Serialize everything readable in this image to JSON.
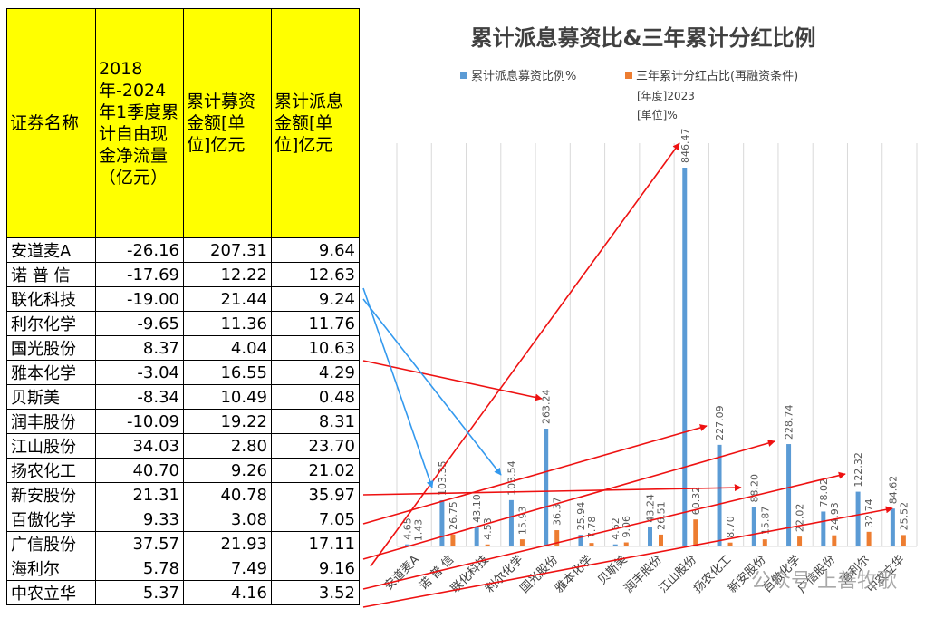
{
  "table": {
    "headers": [
      "证券名称",
      "2018年-2024年1季度累计自由现金净流量（亿元）",
      "累计募资金额[单位]亿元",
      "累计派息金额[单位]亿元"
    ],
    "rows": [
      {
        "name": "安道麦A",
        "fcf": "-26.16",
        "raise": "207.31",
        "div": "9.64"
      },
      {
        "name": "诺 普 信",
        "fcf": "-17.69",
        "raise": "12.22",
        "div": "12.63"
      },
      {
        "name": "联化科技",
        "fcf": "-19.00",
        "raise": "21.44",
        "div": "9.24"
      },
      {
        "name": "利尔化学",
        "fcf": "-9.65",
        "raise": "11.36",
        "div": "11.76"
      },
      {
        "name": "国光股份",
        "fcf": "8.37",
        "raise": "4.04",
        "div": "10.63"
      },
      {
        "name": "雅本化学",
        "fcf": "-3.04",
        "raise": "16.55",
        "div": "4.29"
      },
      {
        "name": "贝斯美",
        "fcf": "-8.34",
        "raise": "10.49",
        "div": "0.48"
      },
      {
        "name": "润丰股份",
        "fcf": "-10.09",
        "raise": "19.22",
        "div": "8.31"
      },
      {
        "name": "江山股份",
        "fcf": "34.03",
        "raise": "2.80",
        "div": "23.70"
      },
      {
        "name": "扬农化工",
        "fcf": "40.70",
        "raise": "9.26",
        "div": "21.02"
      },
      {
        "name": "新安股份",
        "fcf": "21.31",
        "raise": "40.78",
        "div": "35.97"
      },
      {
        "name": "百傲化学",
        "fcf": "9.33",
        "raise": "3.08",
        "div": "7.05"
      },
      {
        "name": "广信股份",
        "fcf": "37.57",
        "raise": "21.93",
        "div": "17.11"
      },
      {
        "name": "海利尔",
        "fcf": "5.78",
        "raise": "7.49",
        "div": "9.16"
      },
      {
        "name": "中农立华",
        "fcf": "5.37",
        "raise": "4.16",
        "div": "3.52"
      }
    ]
  },
  "watermark": "公众号·上善牧歌",
  "colors": {
    "series1": "#5b9bd5",
    "series2": "#ed7d31",
    "header_bg": "#ffff00",
    "arrow_red": "#ee1111",
    "arrow_blue": "#3399ee"
  },
  "chart_data": {
    "type": "bar",
    "title": "累计派息募资比&三年累计分红比例",
    "legend_position": "top",
    "legend_note": [
      "[年度]2023",
      "[单位]%"
    ],
    "categories": [
      "安道麦A",
      "诺 普 信",
      "联化科技",
      "利尔化学",
      "国光股份",
      "雅本化学",
      "贝斯美",
      "润丰股份",
      "江山股份",
      "扬农化工",
      "新安股份",
      "百傲化学",
      "广信股份",
      "海利尔",
      "中农立华"
    ],
    "series": [
      {
        "name": "累计派息募资比例%",
        "values": [
          4.65,
          103.35,
          43.1,
          103.54,
          263.24,
          25.94,
          4.62,
          43.24,
          846.47,
          227.09,
          88.2,
          228.74,
          78.02,
          122.32,
          84.62
        ],
        "labels": [
          "4.65",
          "103.35",
          "43.10",
          "103.54",
          "263.24",
          "25.94",
          "4.62",
          "43.24",
          "846.47",
          "227.09",
          "88.20",
          "228.74",
          "78.02",
          "122.32",
          "84.62"
        ]
      },
      {
        "name": "三年累计分红占比(再融资条件)",
        "values": [
          1.43,
          26.75,
          4.53,
          15.93,
          36.37,
          7.78,
          9.06,
          26.51,
          60.32,
          8.7,
          15.87,
          22.02,
          24.93,
          32.74,
          25.52
        ],
        "labels": [
          "1.43",
          "26.75",
          "4.53",
          "15.93",
          "36.37",
          "7.78",
          "9.06",
          "26.51",
          "60.32",
          "8.70",
          "15.87",
          "22.02",
          "24.93",
          "32.74",
          "25.52"
        ]
      }
    ],
    "ylim": [
      0,
      950
    ],
    "grid": "vertical",
    "annotations": "arrows linking table rows to bars"
  }
}
